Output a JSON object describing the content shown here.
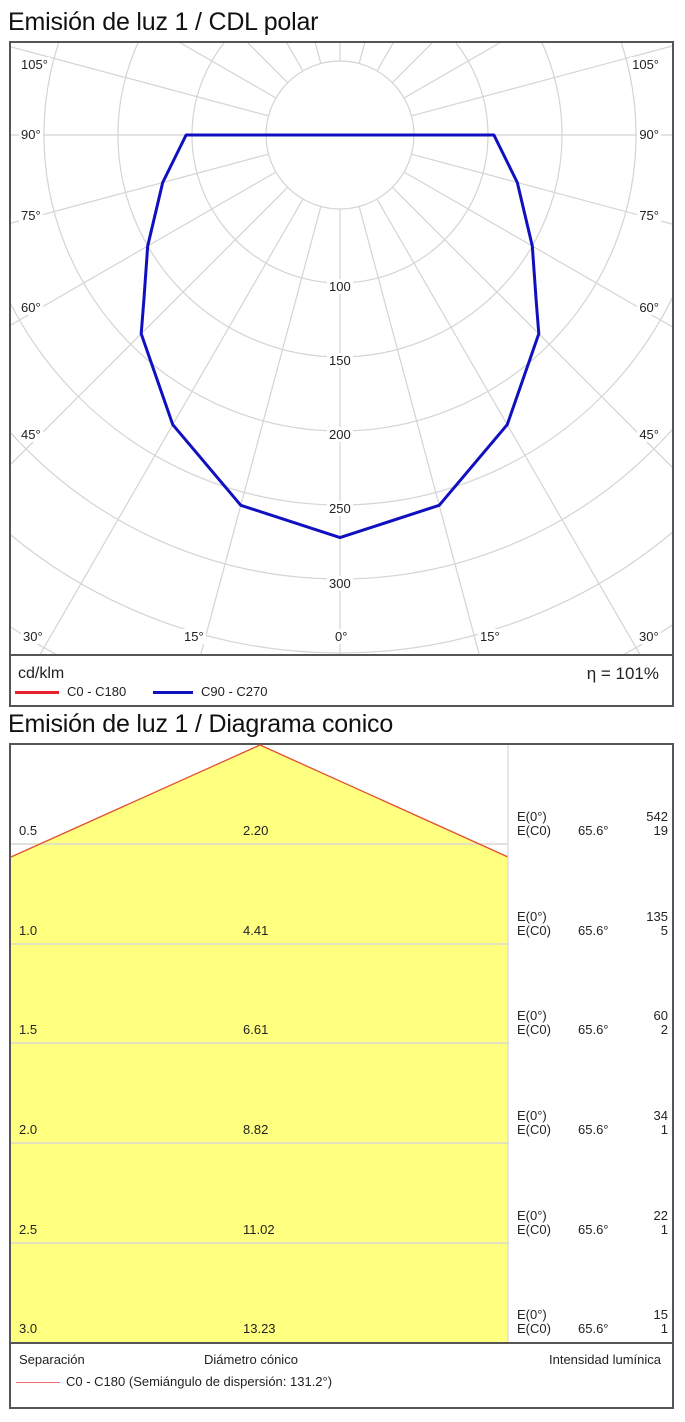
{
  "polar": {
    "title": "Emisión de luz 1 / CDL polar",
    "unit": "cd/klm",
    "efficiency": "η = 101%",
    "angle_labels_side": [
      "105°",
      "90°",
      "75°",
      "60°",
      "45°"
    ],
    "angle_labels_bottom": [
      "30°",
      "15°",
      "0°",
      "15°",
      "30°"
    ],
    "radial_labels": [
      "100",
      "150",
      "200",
      "250",
      "300"
    ],
    "legend": [
      {
        "label": "C0 - C180",
        "color": "#e8202a"
      },
      {
        "label": "C90 - C270",
        "color": "#1010c0"
      }
    ]
  },
  "conic": {
    "title": "Emisión de luz 1 / Diagrama conico",
    "rows": [
      {
        "separation": "0.5",
        "diameter": "2.20",
        "e0_label": "E(0°)",
        "e0": "542",
        "ec0_label": "E(C0)",
        "angle": "65.6°",
        "ec0": "19"
      },
      {
        "separation": "1.0",
        "diameter": "4.41",
        "e0_label": "E(0°)",
        "e0": "135",
        "ec0_label": "E(C0)",
        "angle": "65.6°",
        "ec0": "5"
      },
      {
        "separation": "1.5",
        "diameter": "6.61",
        "e0_label": "E(0°)",
        "e0": "60",
        "ec0_label": "E(C0)",
        "angle": "65.6°",
        "ec0": "2"
      },
      {
        "separation": "2.0",
        "diameter": "8.82",
        "e0_label": "E(0°)",
        "e0": "34",
        "ec0_label": "E(C0)",
        "angle": "65.6°",
        "ec0": "1"
      },
      {
        "separation": "2.5",
        "diameter": "11.02",
        "e0_label": "E(0°)",
        "e0": "22",
        "ec0_label": "E(C0)",
        "angle": "65.6°",
        "ec0": "1"
      },
      {
        "separation": "3.0",
        "diameter": "13.23",
        "e0_label": "E(0°)",
        "e0": "15",
        "ec0_label": "E(C0)",
        "angle": "65.6°",
        "ec0": "1"
      }
    ],
    "footer": {
      "separation": "Separación",
      "diameter": "Diámetro cónico",
      "intensity": "Intensidad lumínica",
      "legend": "C0 - C180 (Semiángulo de dispersión: 131.2°)",
      "legend_color": "#e8202a"
    },
    "fill_color": "#ffff80"
  },
  "chart_data": [
    {
      "type": "polar-line",
      "title": "Emisión de luz 1 / CDL polar",
      "unit": "cd/klm",
      "radial_ticks": [
        50,
        100,
        150,
        200,
        250,
        300
      ],
      "angle_ticks": [
        0,
        15,
        30,
        45,
        60,
        75,
        90,
        105
      ],
      "series": [
        {
          "name": "C90 - C270",
          "color": "#1010c0",
          "angles": [
            0,
            15,
            30,
            45,
            50,
            60,
            75,
            90
          ],
          "values": [
            272,
            259,
            226,
            190,
            173,
            150,
            124,
            104
          ]
        },
        {
          "name": "C0 - C180",
          "color": "#e8202a",
          "angles": [],
          "values": []
        }
      ],
      "annotation": "η = 101%"
    },
    {
      "type": "table",
      "title": "Emisión de luz 1 / Diagrama conico",
      "columns": [
        "Separación",
        "Diámetro cónico",
        "E(0°)",
        "E(C0) angle",
        "E(C0)"
      ],
      "rows": [
        [
          "0.5",
          "2.20",
          542,
          "65.6°",
          19
        ],
        [
          "1.0",
          "4.41",
          135,
          "65.6°",
          5
        ],
        [
          "1.5",
          "6.61",
          60,
          "65.6°",
          2
        ],
        [
          "2.0",
          "8.82",
          34,
          "65.6°",
          1
        ],
        [
          "2.5",
          "11.02",
          22,
          "65.6°",
          1
        ],
        [
          "3.0",
          "13.23",
          15,
          "65.6°",
          1
        ]
      ],
      "half_angle": "131.2°"
    }
  ]
}
